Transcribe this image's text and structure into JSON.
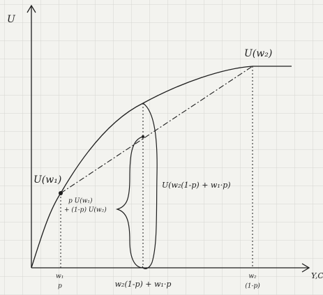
{
  "axes": {
    "y_label": "U",
    "x_label": "Y,C"
  },
  "points": {
    "low_utility": "U(w₁)",
    "high_utility": "U(w₂)",
    "expected_utility_line1": "p U(w₁)",
    "expected_utility_line2": "+ (1-p) U(w₂)",
    "utility_of_expected_wealth": "U(w₂(1-p) + w₁·p)"
  },
  "x_labels": {
    "w1": "w₁",
    "w1_prob": "p",
    "expected_wealth": "w₂(1-p) + w₁·p",
    "w2": "w₂",
    "w2_prob": "(1-p)"
  }
}
